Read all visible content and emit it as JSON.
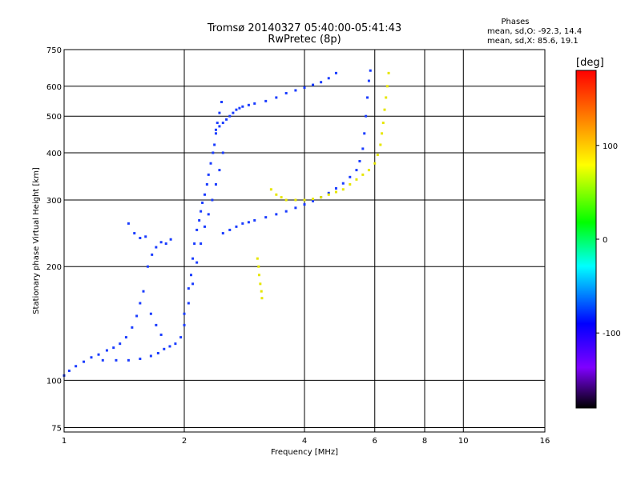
{
  "chart_data": {
    "type": "scatter",
    "title": "Tromsø 20140327 05:40:00-05:41:43",
    "subtitle": "RwPretec (8p)",
    "xlabel": "Frequency [MHz]",
    "ylabel": "Stationary phase Virtual Height [km]",
    "xscale": "log",
    "yscale": "log",
    "xlim": [
      1,
      16
    ],
    "ylim": [
      73,
      750
    ],
    "x_ticks": [
      1,
      2,
      4,
      6,
      8,
      10,
      16
    ],
    "y_ticks": [
      75,
      100,
      200,
      300,
      400,
      500,
      600,
      750
    ],
    "grid": true,
    "stats": {
      "heading": "Phases",
      "line_o": "mean, sd,O: -92.3, 14.4",
      "line_x": "mean, sd,X:  85.6, 19.1"
    },
    "colorbar": {
      "label": "[deg]",
      "range": [
        -180,
        180
      ],
      "ticks": [
        100,
        0,
        -100
      ],
      "colors": [
        "#ff0000",
        "#ff7f00",
        "#ffff00",
        "#00ff00",
        "#00ffff",
        "#0000ff",
        "#7f00ff",
        "#000000"
      ]
    },
    "series": [
      {
        "phase": -105,
        "points": [
          [
            1.0,
            103
          ],
          [
            1.03,
            106
          ],
          [
            1.07,
            109
          ],
          [
            1.12,
            112
          ],
          [
            1.17,
            115
          ],
          [
            1.22,
            117
          ],
          [
            1.28,
            120
          ],
          [
            1.33,
            122
          ],
          [
            1.38,
            125
          ],
          [
            1.43,
            130
          ],
          [
            1.48,
            138
          ],
          [
            1.52,
            148
          ],
          [
            1.55,
            160
          ],
          [
            1.58,
            172
          ],
          [
            1.62,
            200
          ],
          [
            1.66,
            215
          ],
          [
            1.7,
            225
          ],
          [
            1.75,
            232
          ],
          [
            1.8,
            230
          ],
          [
            1.85,
            236
          ],
          [
            1.45,
            260
          ],
          [
            1.5,
            245
          ],
          [
            1.55,
            238
          ],
          [
            1.6,
            240
          ],
          [
            1.65,
            150
          ],
          [
            1.7,
            140
          ],
          [
            1.75,
            132
          ]
        ]
      },
      {
        "phase": -110,
        "points": [
          [
            1.25,
            113
          ],
          [
            1.35,
            113
          ],
          [
            1.45,
            113
          ],
          [
            1.55,
            114
          ],
          [
            1.65,
            116
          ],
          [
            1.72,
            118
          ],
          [
            1.78,
            121
          ],
          [
            1.84,
            123
          ],
          [
            1.9,
            125
          ],
          [
            1.96,
            130
          ],
          [
            2.0,
            140
          ],
          [
            2.05,
            160
          ],
          [
            2.1,
            180
          ],
          [
            2.15,
            205
          ],
          [
            2.2,
            230
          ],
          [
            2.25,
            255
          ],
          [
            2.3,
            275
          ],
          [
            2.35,
            300
          ],
          [
            2.4,
            330
          ],
          [
            2.45,
            360
          ],
          [
            2.5,
            400
          ]
        ]
      },
      {
        "phase": -100,
        "points": [
          [
            2.0,
            150
          ],
          [
            2.05,
            175
          ],
          [
            2.08,
            190
          ],
          [
            2.1,
            210
          ],
          [
            2.12,
            230
          ],
          [
            2.15,
            250
          ],
          [
            2.18,
            265
          ],
          [
            2.2,
            280
          ],
          [
            2.22,
            295
          ],
          [
            2.25,
            310
          ],
          [
            2.28,
            330
          ],
          [
            2.3,
            350
          ],
          [
            2.33,
            375
          ],
          [
            2.36,
            400
          ],
          [
            2.38,
            420
          ],
          [
            2.4,
            450
          ],
          [
            2.42,
            480
          ],
          [
            2.45,
            510
          ],
          [
            2.48,
            545
          ]
        ]
      },
      {
        "phase": -95,
        "points": [
          [
            2.4,
            460
          ],
          [
            2.45,
            470
          ],
          [
            2.5,
            480
          ],
          [
            2.55,
            490
          ],
          [
            2.6,
            500
          ],
          [
            2.65,
            510
          ],
          [
            2.7,
            520
          ],
          [
            2.75,
            525
          ],
          [
            2.8,
            530
          ],
          [
            2.9,
            535
          ],
          [
            3.0,
            540
          ],
          [
            3.2,
            548
          ],
          [
            3.4,
            560
          ],
          [
            3.6,
            575
          ],
          [
            3.8,
            585
          ],
          [
            4.0,
            595
          ],
          [
            4.2,
            605
          ],
          [
            4.4,
            615
          ],
          [
            4.6,
            630
          ],
          [
            4.8,
            650
          ]
        ]
      },
      {
        "phase": -110,
        "points": [
          [
            2.5,
            245
          ],
          [
            2.6,
            250
          ],
          [
            2.7,
            255
          ],
          [
            2.8,
            260
          ],
          [
            2.9,
            262
          ],
          [
            3.0,
            265
          ],
          [
            3.2,
            270
          ],
          [
            3.4,
            275
          ],
          [
            3.6,
            280
          ],
          [
            3.8,
            286
          ],
          [
            4.0,
            292
          ],
          [
            4.2,
            298
          ],
          [
            4.4,
            305
          ],
          [
            4.6,
            313
          ],
          [
            4.8,
            322
          ],
          [
            5.0,
            332
          ],
          [
            5.2,
            345
          ],
          [
            5.4,
            360
          ],
          [
            5.5,
            380
          ],
          [
            5.6,
            410
          ],
          [
            5.65,
            450
          ],
          [
            5.7,
            500
          ],
          [
            5.75,
            560
          ],
          [
            5.8,
            620
          ],
          [
            5.85,
            660
          ]
        ]
      },
      {
        "phase": 110,
        "points": [
          [
            3.3,
            320
          ],
          [
            3.4,
            310
          ],
          [
            3.5,
            305
          ],
          [
            3.6,
            300
          ],
          [
            3.8,
            300
          ],
          [
            4.0,
            300
          ],
          [
            4.2,
            302
          ],
          [
            4.4,
            305
          ],
          [
            4.6,
            310
          ],
          [
            4.8,
            315
          ],
          [
            5.0,
            320
          ],
          [
            5.2,
            330
          ],
          [
            5.4,
            340
          ],
          [
            5.6,
            350
          ],
          [
            5.8,
            360
          ],
          [
            6.0,
            375
          ],
          [
            6.1,
            395
          ],
          [
            6.2,
            420
          ],
          [
            6.25,
            450
          ],
          [
            6.3,
            480
          ],
          [
            6.35,
            520
          ],
          [
            6.4,
            560
          ],
          [
            6.45,
            600
          ],
          [
            6.5,
            650
          ]
        ]
      },
      {
        "phase": 115,
        "points": [
          [
            3.05,
            210
          ],
          [
            3.07,
            200
          ],
          [
            3.08,
            190
          ],
          [
            3.1,
            180
          ],
          [
            3.12,
            172
          ],
          [
            3.13,
            165
          ]
        ]
      }
    ]
  }
}
